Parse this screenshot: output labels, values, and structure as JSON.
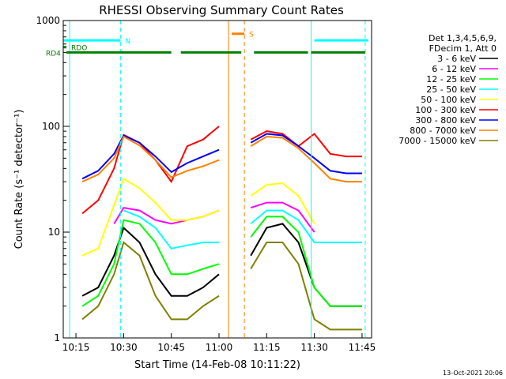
{
  "chart_data": {
    "type": "line",
    "title": "RHESSI Observing Summary Count Rates",
    "xlabel": "Start Time (14-Feb-08 10:11:22)",
    "ylabel": "Count Rate (s⁻¹ detector⁻¹)",
    "yscale": "log",
    "ylim": [
      1,
      1000
    ],
    "xlim_minutes": [
      10.2,
      11.8
    ],
    "x_ticks": [
      "10:15",
      "10:30",
      "10:45",
      "11:00",
      "11:15",
      "11:30",
      "11:45"
    ],
    "y_ticks": [
      "1",
      "10",
      "100",
      "1000"
    ],
    "timestamp": "13-Oct-2021 20:06",
    "legend": {
      "header": [
        "Det 1,3,4,5,6,9,",
        "FDecim 1, Att 0"
      ],
      "placement": "right"
    },
    "series": [
      {
        "name": "3 - 6 keV",
        "color": "#000000",
        "x": [
          "10:17",
          "10:22",
          "10:27",
          "10:30",
          "10:35",
          "10:40",
          "10:45",
          "10:50",
          "10:55",
          "11:00",
          "11:05",
          "11:10",
          "11:15",
          "11:20",
          "11:25",
          "11:30",
          "11:35",
          "11:40",
          "11:45"
        ],
        "values": [
          2.5,
          3,
          6,
          11,
          8,
          4,
          2.5,
          2.5,
          3,
          4,
          null,
          6,
          11,
          12,
          8,
          3,
          2,
          2,
          2
        ]
      },
      {
        "name": "6 - 12 keV",
        "color": "#ff00ff",
        "x": [
          "10:17",
          "10:22",
          "10:27",
          "10:30",
          "10:35",
          "10:40",
          "10:45",
          "10:50",
          "10:55",
          "11:00",
          "11:05",
          "11:10",
          "11:15",
          "11:20",
          "11:25",
          "11:30",
          "11:35",
          "11:40",
          "11:45"
        ],
        "values": [
          null,
          null,
          12,
          17,
          16,
          13,
          12,
          13,
          14,
          16,
          null,
          17,
          19,
          19,
          16,
          10,
          null,
          null,
          null
        ]
      },
      {
        "name": "12 - 25 keV",
        "color": "#00ff00",
        "x": [
          "10:17",
          "10:22",
          "10:27",
          "10:30",
          "10:35",
          "10:40",
          "10:45",
          "10:50",
          "10:55",
          "11:00",
          "11:05",
          "11:10",
          "11:15",
          "11:20",
          "11:25",
          "11:30",
          "11:35",
          "11:40",
          "11:45"
        ],
        "values": [
          2,
          2.5,
          5,
          13,
          12,
          8,
          4,
          4,
          4.5,
          5,
          null,
          9,
          14,
          14,
          10,
          3,
          2,
          2,
          2
        ]
      },
      {
        "name": "25 - 50 keV",
        "color": "#00ffff",
        "x": [
          "10:17",
          "10:22",
          "10:27",
          "10:30",
          "10:35",
          "10:40",
          "10:45",
          "10:50",
          "10:55",
          "11:00",
          "11:05",
          "11:10",
          "11:15",
          "11:20",
          "11:25",
          "11:30",
          "11:35",
          "11:40",
          "11:45"
        ],
        "values": [
          null,
          null,
          null,
          16,
          14,
          11,
          7,
          7.5,
          8,
          8,
          null,
          12,
          16,
          16,
          13,
          8,
          8,
          8,
          8
        ]
      },
      {
        "name": "50 - 100 keV",
        "color": "#ffff00",
        "x": [
          "10:17",
          "10:22",
          "10:27",
          "10:30",
          "10:35",
          "10:40",
          "10:45",
          "10:50",
          "10:55",
          "11:00",
          "11:05",
          "11:10",
          "11:15",
          "11:20",
          "11:25",
          "11:30",
          "11:35",
          "11:40",
          "11:45"
        ],
        "values": [
          6,
          7,
          18,
          32,
          26,
          19,
          13,
          13,
          14,
          16,
          null,
          22,
          28,
          29,
          22,
          12,
          null,
          null,
          null
        ]
      },
      {
        "name": "100 - 300 keV",
        "color": "#ff0000",
        "x": [
          "10:17",
          "10:22",
          "10:27",
          "10:30",
          "10:35",
          "10:40",
          "10:45",
          "10:50",
          "10:55",
          "11:00",
          "11:05",
          "11:10",
          "11:15",
          "11:20",
          "11:25",
          "11:30",
          "11:35",
          "11:40",
          "11:45"
        ],
        "values": [
          15,
          20,
          40,
          83,
          70,
          48,
          30,
          65,
          75,
          100,
          null,
          75,
          90,
          85,
          65,
          85,
          55,
          52,
          52
        ]
      },
      {
        "name": "300 - 800 keV",
        "color": "#0000ff",
        "x": [
          "10:17",
          "10:22",
          "10:27",
          "10:30",
          "10:35",
          "10:40",
          "10:45",
          "10:50",
          "10:55",
          "11:00",
          "11:05",
          "11:10",
          "11:15",
          "11:20",
          "11:25",
          "11:30",
          "11:35",
          "11:40",
          "11:45"
        ],
        "values": [
          32,
          38,
          55,
          82,
          70,
          52,
          37,
          45,
          52,
          60,
          null,
          70,
          85,
          82,
          65,
          50,
          38,
          36,
          36
        ]
      },
      {
        "name": "800 - 7000 keV",
        "color": "#ff8000",
        "x": [
          "10:17",
          "10:22",
          "10:27",
          "10:30",
          "10:35",
          "10:40",
          "10:45",
          "10:50",
          "10:55",
          "11:00",
          "11:05",
          "11:10",
          "11:15",
          "11:20",
          "11:25",
          "11:30",
          "11:35",
          "11:40",
          "11:45"
        ],
        "values": [
          30,
          35,
          50,
          80,
          66,
          48,
          33,
          38,
          42,
          48,
          null,
          65,
          80,
          78,
          62,
          45,
          32,
          30,
          30
        ]
      },
      {
        "name": "7000 - 15000 keV",
        "color": "#808000",
        "x": [
          "10:17",
          "10:22",
          "10:27",
          "10:30",
          "10:35",
          "10:40",
          "10:45",
          "10:50",
          "10:55",
          "11:00",
          "11:05",
          "11:10",
          "11:15",
          "11:20",
          "11:25",
          "11:30",
          "11:35",
          "11:40",
          "11:45"
        ],
        "values": [
          1.5,
          2,
          4,
          8,
          6,
          2.5,
          1.5,
          1.5,
          2,
          2.5,
          null,
          4.5,
          8,
          8,
          5,
          1.5,
          1.2,
          1.2,
          1.2
        ]
      }
    ],
    "annotations": {
      "bars": [
        {
          "label": "N",
          "color": "#00ffff",
          "segments": [
            [
              "10:11",
              "10:29"
            ],
            [
              "11:30",
              "11:47"
            ]
          ],
          "y": 650
        },
        {
          "label": "RDO",
          "color": "#008000",
          "segments": [
            [
              "10:11",
              "10:12"
            ]
          ],
          "y": 560
        },
        {
          "label": "RD4",
          "color": "#008000",
          "segments": [
            [
              "10:12",
              "10:45"
            ],
            [
              "10:48",
              "11:07"
            ],
            [
              "11:11",
              "11:28"
            ],
            [
              "11:29",
              "11:46"
            ]
          ],
          "y": 500
        },
        {
          "label": "S",
          "color": "#ff8000",
          "segments": [
            [
              "11:04",
              "11:08"
            ]
          ],
          "y": 750
        }
      ],
      "vertical_lines": [
        {
          "x": "10:13",
          "color": "#00ffff",
          "style": "solid"
        },
        {
          "x": "10:29",
          "color": "#00ffff",
          "style": "dashed"
        },
        {
          "x": "11:03",
          "color": "#ff8000",
          "style": "solid"
        },
        {
          "x": "11:08",
          "color": "#ff8000",
          "style": "dashed"
        },
        {
          "x": "11:29",
          "color": "#00ffff",
          "style": "solid"
        },
        {
          "x": "11:46",
          "color": "#00ffff",
          "style": "dashed"
        }
      ]
    }
  }
}
